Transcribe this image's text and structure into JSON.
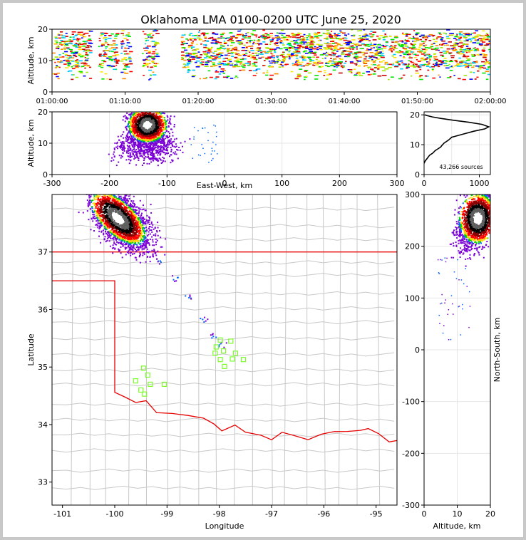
{
  "chart_data": [
    {
      "id": "time_altitude",
      "type": "heatmap",
      "title": "Oklahoma LMA 0100-0200 UTC June 25, 2020",
      "xlabel": "",
      "ylabel": "Altitude, km",
      "xlim_minutes": [
        0,
        60
      ],
      "ylim": [
        0,
        20
      ],
      "xticks": [
        "01:00:00",
        "01:10:00",
        "01:20:00",
        "01:30:00",
        "01:40:00",
        "01:50:00",
        "02:00:00"
      ],
      "yticks": [
        0,
        10,
        20
      ],
      "data_gaps_minutes": [
        [
          5.1,
          6.3
        ],
        [
          8.8,
          9.3
        ],
        [
          10.6,
          12.3
        ],
        [
          14.3,
          17.6
        ]
      ],
      "source_altitude_range_km": [
        4,
        20
      ],
      "dense_band_km": [
        8,
        19
      ]
    },
    {
      "id": "eastwest_altitude",
      "type": "heatmap",
      "xlabel": "East-West, km",
      "ylabel": "Altitude, km",
      "xlim": [
        -300,
        300
      ],
      "ylim": [
        0,
        20
      ],
      "xticks": [
        -300,
        -200,
        -100,
        0,
        100,
        200,
        300
      ],
      "yticks": [
        0,
        10,
        20
      ],
      "core_center": {
        "ew_km": -135,
        "alt_km": 16
      },
      "secondary_core": {
        "ew_km": -155,
        "alt_km": 9
      }
    },
    {
      "id": "altitude_histogram",
      "type": "line",
      "ylabel": "",
      "xlim": [
        0,
        1200
      ],
      "ylim": [
        0,
        21
      ],
      "xticks": [
        0,
        1000
      ],
      "yticks": [
        0,
        10,
        20
      ],
      "annotation": "43,266 sources",
      "x": [
        0,
        20,
        60,
        100,
        160,
        200,
        260,
        300,
        320,
        360,
        440,
        500,
        700,
        900,
        1100,
        1170,
        1050,
        820,
        520,
        300,
        150,
        60,
        10
      ],
      "y": [
        3.8,
        4.5,
        5.5,
        6.5,
        7.2,
        8.0,
        8.7,
        9.2,
        9.7,
        10.5,
        11.5,
        12.5,
        13.5,
        14.5,
        15.3,
        16.0,
        16.8,
        17.5,
        18.2,
        18.8,
        19.3,
        19.7,
        20.0
      ]
    },
    {
      "id": "plan_view",
      "type": "scatter",
      "xlabel": "Longitude",
      "ylabel": "Latitude",
      "xlim": [
        -101.2,
        -94.6
      ],
      "ylim": [
        32.6,
        38.0
      ],
      "xticks": [
        -101,
        -100,
        -99,
        -98,
        -97,
        -96,
        -95
      ],
      "yticks": [
        33,
        34,
        35,
        36,
        37
      ],
      "core_center": {
        "lon": -99.95,
        "lat": 37.6
      },
      "trail": [
        [
          -99.2,
          36.85
        ],
        [
          -98.85,
          36.55
        ],
        [
          -98.6,
          36.25
        ],
        [
          -98.3,
          35.85
        ],
        [
          -98.1,
          35.55
        ],
        [
          -97.95,
          35.4
        ]
      ],
      "stations": [
        [
          -99.45,
          34.98
        ],
        [
          -99.37,
          34.86
        ],
        [
          -99.6,
          34.76
        ],
        [
          -99.32,
          34.7
        ],
        [
          -99.5,
          34.6
        ],
        [
          -99.43,
          34.53
        ],
        [
          -99.05,
          34.7
        ],
        [
          -97.98,
          35.47
        ],
        [
          -97.78,
          35.45
        ],
        [
          -98.06,
          35.35
        ],
        [
          -97.92,
          35.28
        ],
        [
          -98.08,
          35.24
        ],
        [
          -97.69,
          35.24
        ],
        [
          -97.98,
          35.13
        ],
        [
          -97.75,
          35.14
        ],
        [
          -97.54,
          35.13
        ],
        [
          -97.9,
          35.01
        ]
      ]
    },
    {
      "id": "altitude_northsouth",
      "type": "heatmap",
      "xlabel": "Altitude, km",
      "ylabel": "North-South, km",
      "xlim": [
        0,
        20
      ],
      "ylim": [
        -300,
        300
      ],
      "xticks": [
        0,
        10,
        20
      ],
      "yticks": [
        -300,
        -200,
        -100,
        0,
        100,
        200,
        300
      ],
      "core_center": {
        "alt_km": 16,
        "ns_km": 255
      }
    }
  ]
}
